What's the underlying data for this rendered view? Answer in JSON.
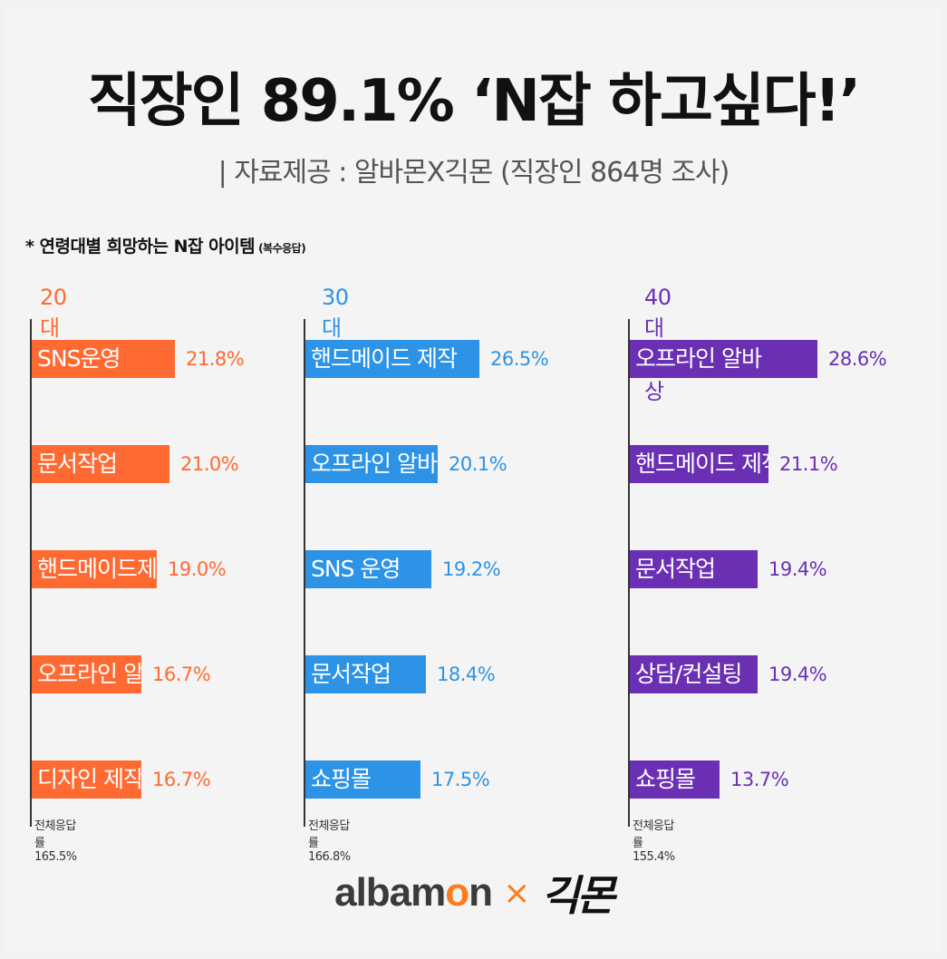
{
  "title": "직장인 89.1% ‘N잡 하고싶다!’",
  "subtitle": "| 자료제공 : 알바몬X긱몬 (직장인 864명 조사)",
  "section_note": "* 연령대별 희망하는 N잡 아이템",
  "section_note_small": "(복수응답)",
  "colors": {
    "c20": "#ff6a33",
    "c30": "#2d93e6",
    "c40": "#6a2fb3"
  },
  "chart_data": [
    {
      "type": "bar",
      "title": "20대",
      "categories": [
        "SNS운영",
        "문서작업",
        "핸드메이드제작",
        "오프라인 알바",
        "디자인 제작"
      ],
      "values": [
        21.8,
        21.0,
        19.0,
        16.7,
        16.7
      ],
      "labels": [
        "21.8%",
        "21.0%",
        "19.0%",
        "16.7%",
        "16.7%"
      ],
      "total": "전체응답률 165.5%"
    },
    {
      "type": "bar",
      "title": "30대",
      "categories": [
        "핸드메이드 제작",
        "오프라인 알바",
        "SNS 운영",
        "문서작업",
        "쇼핑몰"
      ],
      "values": [
        26.5,
        20.1,
        19.2,
        18.4,
        17.5
      ],
      "labels": [
        "26.5%",
        "20.1%",
        "19.2%",
        "18.4%",
        "17.5%"
      ],
      "total": "전체응답률 166.8%"
    },
    {
      "type": "bar",
      "title": "40대이상",
      "categories": [
        "오프라인 알바",
        "핸드메이드 제작",
        "문서작업",
        "상담/컨설팅",
        "쇼핑몰"
      ],
      "values": [
        28.6,
        21.1,
        19.4,
        19.4,
        13.7
      ],
      "labels": [
        "28.6%",
        "21.1%",
        "19.4%",
        "19.4%",
        "13.7%"
      ],
      "total": "전체응답률 155.4%"
    }
  ],
  "logo": {
    "albamon_a": "albam",
    "albamon_o": "o",
    "albamon_n": "n",
    "x": "×",
    "gigmon": "긱몬"
  }
}
